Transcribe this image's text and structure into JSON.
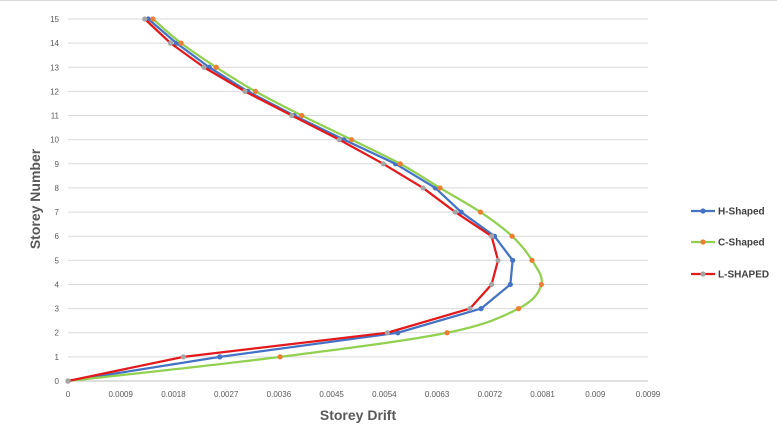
{
  "chart_data": {
    "type": "line",
    "xlabel": "Storey Drift",
    "ylabel": "Storey Number",
    "xlim": [
      0,
      0.0099
    ],
    "ylim": [
      0,
      15
    ],
    "x_ticks": [
      "0",
      "0.0009",
      "0.0018",
      "0.0027",
      "0.0036",
      "0.0045",
      "0.0054",
      "0.0063",
      "0.0072",
      "0.0081",
      "0.009",
      "0.0099"
    ],
    "y_ticks": [
      "0",
      "1",
      "2",
      "3",
      "4",
      "5",
      "6",
      "7",
      "8",
      "9",
      "10",
      "11",
      "12",
      "13",
      "14",
      "15"
    ],
    "grid": "horizontal",
    "legend_position": "right",
    "series": [
      {
        "name": "H-Shaped",
        "line_color": "#4472c4",
        "marker_color": "#4472c4",
        "smooth": false,
        "points": [
          [
            0,
            0
          ],
          [
            0.00259,
            1
          ],
          [
            0.00563,
            2
          ],
          [
            0.00705,
            3
          ],
          [
            0.00755,
            4
          ],
          [
            0.00759,
            5
          ],
          [
            0.00728,
            6
          ],
          [
            0.00671,
            7
          ],
          [
            0.00627,
            8
          ],
          [
            0.00559,
            9
          ],
          [
            0.00471,
            10
          ],
          [
            0.00386,
            11
          ],
          [
            0.00307,
            12
          ],
          [
            0.00241,
            13
          ],
          [
            0.00185,
            14
          ],
          [
            0.00137,
            15
          ]
        ]
      },
      {
        "name": "C-Shaped",
        "line_color": "#92d050",
        "marker_color": "#ed7d31",
        "smooth": true,
        "points": [
          [
            0,
            0
          ],
          [
            0.00362,
            1
          ],
          [
            0.00647,
            2
          ],
          [
            0.00769,
            3
          ],
          [
            0.00808,
            4
          ],
          [
            0.00792,
            5
          ],
          [
            0.00758,
            6
          ],
          [
            0.00704,
            7
          ],
          [
            0.00635,
            8
          ],
          [
            0.00567,
            9
          ],
          [
            0.00484,
            10
          ],
          [
            0.00399,
            11
          ],
          [
            0.0032,
            12
          ],
          [
            0.00253,
            13
          ],
          [
            0.00193,
            14
          ],
          [
            0.00145,
            15
          ]
        ]
      },
      {
        "name": "L-SHAPED",
        "line_color": "#e31a1c",
        "marker_color": "#a5a5a5",
        "smooth": false,
        "points": [
          [
            0,
            0
          ],
          [
            0.00197,
            1
          ],
          [
            0.00545,
            2
          ],
          [
            0.00686,
            3
          ],
          [
            0.00723,
            4
          ],
          [
            0.00734,
            5
          ],
          [
            0.00723,
            6
          ],
          [
            0.00661,
            7
          ],
          [
            0.00606,
            8
          ],
          [
            0.00538,
            9
          ],
          [
            0.00463,
            10
          ],
          [
            0.00382,
            11
          ],
          [
            0.00302,
            12
          ],
          [
            0.00232,
            13
          ],
          [
            0.00175,
            14
          ],
          [
            0.00131,
            15
          ]
        ]
      }
    ]
  }
}
